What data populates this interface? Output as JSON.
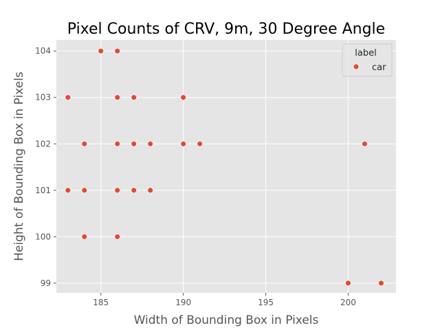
{
  "chart_data": {
    "type": "scatter",
    "title": "Pixel Counts of CRV, 9m, 30 Degree Angle",
    "xlabel": "Width of Bounding Box in Pixels",
    "ylabel": "Height of Bounding Box in Pixels",
    "xlim": [
      182.3,
      202.9
    ],
    "ylim": [
      98.79,
      104.24
    ],
    "xticks": [
      185,
      190,
      195,
      200
    ],
    "yticks": [
      99,
      100,
      101,
      102,
      103,
      104
    ],
    "grid": true,
    "legend": {
      "title": "label",
      "position": "top-right"
    },
    "series": [
      {
        "name": "car",
        "color": "#e24a33",
        "points": [
          {
            "x": 185,
            "y": 104
          },
          {
            "x": 186,
            "y": 104
          },
          {
            "x": 183,
            "y": 103
          },
          {
            "x": 186,
            "y": 103
          },
          {
            "x": 187,
            "y": 103
          },
          {
            "x": 190,
            "y": 103
          },
          {
            "x": 184,
            "y": 102
          },
          {
            "x": 186,
            "y": 102
          },
          {
            "x": 187,
            "y": 102
          },
          {
            "x": 188,
            "y": 102
          },
          {
            "x": 190,
            "y": 102
          },
          {
            "x": 191,
            "y": 102
          },
          {
            "x": 201,
            "y": 102
          },
          {
            "x": 183,
            "y": 101
          },
          {
            "x": 184,
            "y": 101
          },
          {
            "x": 186,
            "y": 101
          },
          {
            "x": 187,
            "y": 101
          },
          {
            "x": 188,
            "y": 101
          },
          {
            "x": 184,
            "y": 100
          },
          {
            "x": 186,
            "y": 100
          },
          {
            "x": 200,
            "y": 99
          },
          {
            "x": 202,
            "y": 99
          }
        ]
      }
    ],
    "style": {
      "background": "#e5e5e5",
      "grid_color": "#ffffff"
    }
  }
}
